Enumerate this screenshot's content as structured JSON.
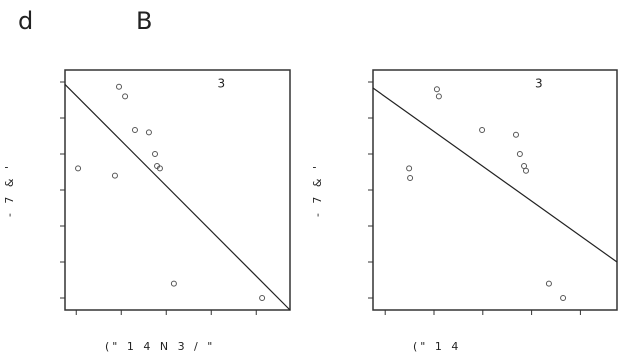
{
  "labels": {
    "left": "d",
    "right": "B"
  },
  "chart_data": [
    {
      "type": "scatter",
      "annotation": "3",
      "ylabel": "- 7 & '",
      "xlabel": "(\" 1 4 N 3 / \"",
      "x": [
        2.4,
        2.67,
        3.11,
        3.73,
        4.0,
        4.09,
        4.22,
        0.58,
        2.22,
        4.84,
        8.76
      ],
      "y": [
        9.3,
        8.9,
        7.5,
        7.4,
        6.5,
        6.0,
        5.9,
        5.9,
        5.6,
        1.1,
        0.5
      ],
      "fit_line": {
        "x": [
          0,
          10
        ],
        "y": [
          9.4,
          0
        ]
      },
      "xlim": [
        0,
        10
      ],
      "ylim": [
        0,
        10
      ],
      "xticks": [
        0.5,
        2.5,
        4.5,
        6.5,
        8.5
      ],
      "yticks": [
        0.5,
        2,
        3.5,
        5,
        6.5,
        8,
        9.5
      ],
      "color": "#555"
    },
    {
      "type": "scatter",
      "annotation": "3",
      "ylabel": "- 7 & '",
      "xlabel": "(\" 1 4",
      "x": [
        2.62,
        2.7,
        4.47,
        5.86,
        6.02,
        6.19,
        6.27,
        1.48,
        1.52,
        7.21,
        7.79
      ],
      "y": [
        9.2,
        8.9,
        7.5,
        7.3,
        6.5,
        6.0,
        5.8,
        5.9,
        5.5,
        1.1,
        0.5
      ],
      "fit_line": {
        "x": [
          0,
          10
        ],
        "y": [
          9.25,
          2.0
        ]
      },
      "xlim": [
        0,
        10
      ],
      "ylim": [
        0,
        10
      ],
      "xticks": [
        0.5,
        2.5,
        4.5,
        6.5,
        8.5
      ],
      "yticks": [
        0.5,
        2,
        3.5,
        5,
        6.5,
        8,
        9.5
      ],
      "color": "#555"
    }
  ]
}
